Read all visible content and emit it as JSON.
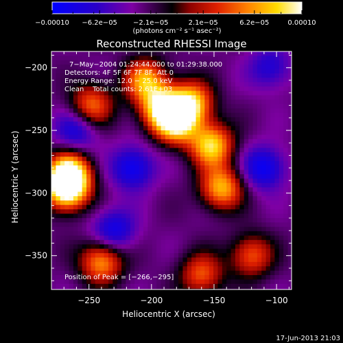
{
  "chart_data": {
    "type": "heatmap",
    "title": "Reconstructed RHESSI Image",
    "xlabel": "Heliocentric X (arcsec)",
    "ylabel": "Heliocentric Y (arcsec)",
    "xlim": [
      -280,
      -88
    ],
    "ylim": [
      -377,
      -187
    ],
    "x_ticks": [
      -250,
      -200,
      -150,
      -100
    ],
    "x_tick_labels": [
      "−250",
      "−200",
      "−150",
      "−100"
    ],
    "y_ticks": [
      -200,
      -250,
      -300,
      -350
    ],
    "y_tick_labels": [
      "−200",
      "−250",
      "−300",
      "−350"
    ],
    "colorbar": {
      "range": [
        -0.0001,
        0.0001
      ],
      "tick_labels": [
        "−0.00010",
        "−6.2e−05",
        "−2.1e−05",
        "2.1e−05",
        "6.2e−05",
        "0.00010"
      ],
      "unit_label": "(photons cm⁻² s⁻¹ asec⁻²)"
    },
    "annotations": [
      "7−May−2004 01:24:44.000 to 01:29:38.000",
      "Detectors: 4F 5F 6F 7F 8F, Att 0",
      "Energy Range: 12.0 − 25.0 keV",
      "Clean    Total counts: 2.61E+03"
    ],
    "peak_label": "Position of Peak = [−266,−295]",
    "peak_position": [
      -266,
      -295
    ],
    "blobs": [
      {
        "x": -268,
        "y": -297,
        "v": 1.0
      },
      {
        "x": -266,
        "y": -284,
        "v": 0.9
      },
      {
        "x": -192,
        "y": -232,
        "v": 0.85
      },
      {
        "x": -180,
        "y": -244,
        "v": 0.85
      },
      {
        "x": -168,
        "y": -228,
        "v": 0.8
      },
      {
        "x": -152,
        "y": -262,
        "v": 0.85
      },
      {
        "x": -144,
        "y": -296,
        "v": 0.75
      },
      {
        "x": -240,
        "y": -355,
        "v": 0.7
      },
      {
        "x": -205,
        "y": -210,
        "v": 0.7
      },
      {
        "x": -248,
        "y": -230,
        "v": 0.6
      },
      {
        "x": -120,
        "y": -350,
        "v": 0.55
      },
      {
        "x": -160,
        "y": -365,
        "v": 0.55
      },
      {
        "x": -215,
        "y": -280,
        "v": -0.5
      },
      {
        "x": -230,
        "y": -330,
        "v": -0.45
      },
      {
        "x": -110,
        "y": -280,
        "v": -0.5
      },
      {
        "x": -260,
        "y": -250,
        "v": -0.4
      },
      {
        "x": -105,
        "y": -200,
        "v": -0.35
      }
    ],
    "blob_sigma": 12
  },
  "footer": {
    "timestamp": "17-Jun-2013 21:03"
  }
}
